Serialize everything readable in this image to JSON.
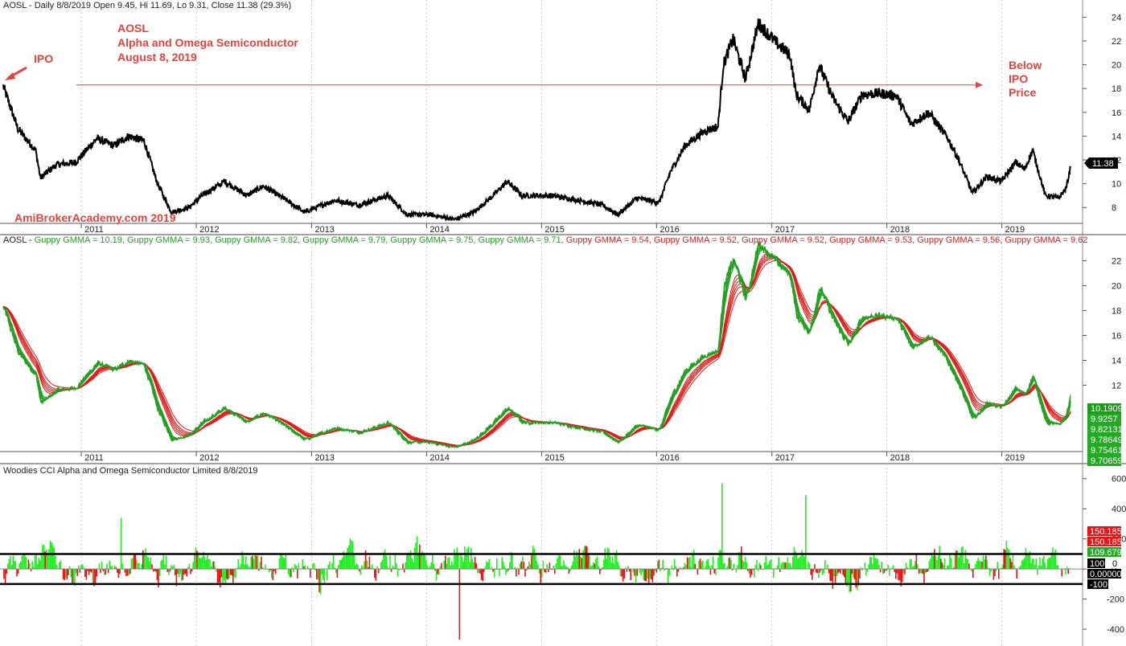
{
  "colors": {
    "price": "#000000",
    "short": "#22a022",
    "long": "#e01b1b",
    "cci_pos": "#22ee22",
    "cci_neg": "#ee1111",
    "annotation": "#e8413c",
    "grid": "#c8c8c8"
  },
  "chart_data": [
    {
      "type": "line",
      "panel": "price",
      "header": "AOSL - Daily 8/8/2019 Open 9.45, Hi 11.69, Lo 9.31, Close 11.38 (29.3%)",
      "x_labels": [
        "2011",
        "2012",
        "2013",
        "2014",
        "2015",
        "2016",
        "2017",
        "2018",
        "2019"
      ],
      "y_ticks": [
        8,
        10,
        12,
        14,
        16,
        18,
        20,
        22,
        24
      ],
      "ylim": [
        6.8,
        24.5
      ],
      "series": [
        {
          "values": [
            [
              "2010-04-29",
              18.2
            ],
            [
              "2010-06-15",
              14.6
            ],
            [
              "2010-08-10",
              12.8
            ],
            [
              "2010-08-25",
              10.5
            ],
            [
              "2010-10-15",
              11.6
            ],
            [
              "2010-12-15",
              11.8
            ],
            [
              "2011-02-20",
              13.8
            ],
            [
              "2011-04-15",
              13.2
            ],
            [
              "2011-06-01",
              14.0
            ],
            [
              "2011-07-20",
              13.6
            ],
            [
              "2011-09-01",
              10.0
            ],
            [
              "2011-10-15",
              7.6
            ],
            [
              "2011-12-10",
              8.0
            ],
            [
              "2012-01-20",
              9.0
            ],
            [
              "2012-04-01",
              10.2
            ],
            [
              "2012-06-10",
              9.0
            ],
            [
              "2012-08-01",
              9.8
            ],
            [
              "2012-10-15",
              8.6
            ],
            [
              "2012-12-10",
              7.6
            ],
            [
              "2013-03-15",
              8.6
            ],
            [
              "2013-06-01",
              8.2
            ],
            [
              "2013-09-01",
              9.0
            ],
            [
              "2013-11-01",
              7.4
            ],
            [
              "2014-01-10",
              7.4
            ],
            [
              "2014-04-01",
              7.0
            ],
            [
              "2014-06-01",
              7.6
            ],
            [
              "2014-08-01",
              9.0
            ],
            [
              "2014-09-15",
              10.2
            ],
            [
              "2014-11-01",
              9.0
            ],
            [
              "2015-02-01",
              9.0
            ],
            [
              "2015-05-01",
              8.6
            ],
            [
              "2015-07-15",
              8.2
            ],
            [
              "2015-09-01",
              7.4
            ],
            [
              "2015-11-01",
              8.8
            ],
            [
              "2016-01-10",
              8.4
            ],
            [
              "2016-02-15",
              11.0
            ],
            [
              "2016-04-01",
              13.2
            ],
            [
              "2016-06-01",
              14.4
            ],
            [
              "2016-07-15",
              14.8
            ],
            [
              "2016-08-01",
              20.0
            ],
            [
              "2016-09-01",
              22.2
            ],
            [
              "2016-10-10",
              18.8
            ],
            [
              "2016-11-20",
              23.5
            ],
            [
              "2017-01-10",
              22.0
            ],
            [
              "2017-03-01",
              20.8
            ],
            [
              "2017-03-20",
              17.5
            ],
            [
              "2017-05-01",
              16.2
            ],
            [
              "2017-06-01",
              20.0
            ],
            [
              "2017-07-15",
              17.2
            ],
            [
              "2017-09-01",
              15.2
            ],
            [
              "2017-10-15",
              17.5
            ],
            [
              "2017-12-10",
              17.6
            ],
            [
              "2018-02-01",
              17.4
            ],
            [
              "2018-03-20",
              15.0
            ],
            [
              "2018-05-15",
              16.0
            ],
            [
              "2018-07-15",
              13.8
            ],
            [
              "2018-08-15",
              12.2
            ],
            [
              "2018-10-01",
              9.2
            ],
            [
              "2018-11-15",
              10.6
            ],
            [
              "2019-01-01",
              10.2
            ],
            [
              "2019-02-15",
              11.8
            ],
            [
              "2019-03-15",
              11.2
            ],
            [
              "2019-04-10",
              12.8
            ],
            [
              "2019-05-20",
              9.0
            ],
            [
              "2019-07-01",
              8.8
            ],
            [
              "2019-07-25",
              9.6
            ],
            [
              "2019-08-08",
              11.38
            ]
          ]
        }
      ],
      "last_value_tag": "11.38",
      "annotations": {
        "title_lines": [
          "AOSL",
          "Alpha and Omega Semiconductor",
          "August 8, 2019"
        ],
        "ipo": "IPO",
        "below_lines": [
          "Below",
          "IPO",
          "Price"
        ],
        "watermark": "AmiBrokerAcademy.com 2019"
      },
      "ipo_price_line": 18.3
    },
    {
      "type": "line",
      "panel": "gmma",
      "header_prefix": "AOSL - ",
      "header_items": [
        {
          "text": "Guppy GMMA = 10.19, ",
          "group": "short"
        },
        {
          "text": "Guppy GMMA = 9.93, ",
          "group": "short"
        },
        {
          "text": "Guppy GMMA = 9.82, ",
          "group": "short"
        },
        {
          "text": "Guppy GMMA = 9.79, ",
          "group": "short"
        },
        {
          "text": "Guppy GMMA = 9.75, ",
          "group": "short"
        },
        {
          "text": "Guppy GMMA = 9.71, ",
          "group": "short"
        },
        {
          "text": "Guppy GMMA = 9.54, ",
          "group": "long"
        },
        {
          "text": "Guppy GMMA = 9.52, ",
          "group": "long"
        },
        {
          "text": "Guppy GMMA = 9.52, ",
          "group": "long"
        },
        {
          "text": "Guppy GMMA = 9.53, ",
          "group": "long"
        },
        {
          "text": "Guppy GMMA = 9.56, ",
          "group": "long"
        },
        {
          "text": "Guppy GMMA = 9.62",
          "group": "long"
        }
      ],
      "x_labels": [
        "2011",
        "2012",
        "2013",
        "2014",
        "2015",
        "2016",
        "2017",
        "2018",
        "2019"
      ],
      "y_ticks": [
        12,
        14,
        16,
        18,
        20,
        22
      ],
      "ylim": [
        6.8,
        23.2
      ],
      "value_tags": [
        "10.1909",
        "9.9257",
        "9.82131",
        "9.78649",
        "9.75461",
        "9.70659"
      ]
    },
    {
      "type": "bar",
      "panel": "cci",
      "header": "Woodies CCI  Alpha and Omega Semiconductor Limited 8/8/2019",
      "y_ticks": [
        -400,
        -200,
        0,
        200,
        400,
        600
      ],
      "ylim": [
        -490,
        620
      ],
      "ref_lines": [
        100,
        -100,
        0
      ],
      "value_tags": [
        {
          "text": "150.185",
          "bg": "#ee1111",
          "fg": "#ffffff"
        },
        {
          "text": "150.185",
          "bg": "#ee1111",
          "fg": "#ffffff"
        },
        {
          "text": "109.679",
          "bg": "#22aa22",
          "fg": "#ffffff"
        },
        {
          "text": "100",
          "bg": "#000000",
          "fg": "#ffffff"
        },
        {
          "text": "0",
          "bg": "#ffffff",
          "fg": "#000000"
        },
        {
          "text": "0.00000",
          "bg": "#000000",
          "fg": "#ffffff"
        },
        {
          "text": "-100",
          "bg": "#000000",
          "fg": "#ffffff"
        }
      ],
      "notable_spikes": [
        [
          "2016-07-28",
          570
        ],
        [
          "2017-04-20",
          490
        ],
        [
          "2013-11-05",
          320
        ],
        [
          "2012-12-20",
          350
        ],
        [
          "2011-05-10",
          340
        ],
        [
          "2014-04-15",
          -470
        ]
      ]
    }
  ]
}
